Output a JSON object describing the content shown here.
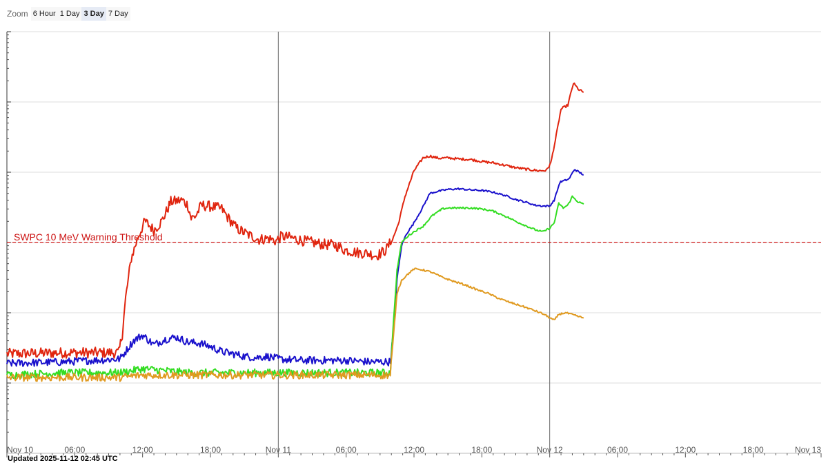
{
  "zoom": {
    "label": "Zoom",
    "buttons": [
      "6 Hour",
      "1 Day",
      "3 Day",
      "7 Day"
    ],
    "selected": "3 Day"
  },
  "updated_text": "Updated 2025-11-12 02:45 UTC",
  "colors": {
    "threshold": "#cc1111",
    "red": "#e0250f",
    "blue": "#1a11cc",
    "green": "#33dd22",
    "orange": "#e09a20",
    "grid": "#dddddd",
    "day_line": "#666666"
  },
  "chart_data": {
    "type": "line",
    "x_unit": "hours since Nov 10 00:00 UTC",
    "xlim": [
      0,
      72
    ],
    "y_scale": "log",
    "ylim": [
      0.01,
      10000
    ],
    "x_ticks": [
      {
        "h": 0,
        "label": "Nov 10"
      },
      {
        "h": 6,
        "label": "06:00"
      },
      {
        "h": 12,
        "label": "12:00"
      },
      {
        "h": 18,
        "label": "18:00"
      },
      {
        "h": 24,
        "label": "Nov 11"
      },
      {
        "h": 30,
        "label": "06:00"
      },
      {
        "h": 36,
        "label": "12:00"
      },
      {
        "h": 42,
        "label": "18:00"
      },
      {
        "h": 48,
        "label": "Nov 12"
      },
      {
        "h": 54,
        "label": "06:00"
      },
      {
        "h": 60,
        "label": "12:00"
      },
      {
        "h": 66,
        "label": "18:00"
      },
      {
        "h": 72,
        "label": "Nov 13"
      }
    ],
    "day_boundaries": [
      24,
      48
    ],
    "threshold": {
      "value": 10,
      "label": "SWPC 10 MeV Warning Threshold"
    },
    "series": [
      {
        "color_key": "red",
        "points": [
          [
            0,
            0.26
          ],
          [
            5,
            0.27
          ],
          [
            9.9,
            0.27
          ],
          [
            10.2,
            0.5
          ],
          [
            10.5,
            1.6
          ],
          [
            11,
            6
          ],
          [
            11.6,
            12
          ],
          [
            12.2,
            20
          ],
          [
            13,
            15
          ],
          [
            13.7,
            20
          ],
          [
            14.5,
            38
          ],
          [
            15.5,
            40
          ],
          [
            16,
            34
          ],
          [
            16.3,
            22
          ],
          [
            16.7,
            24
          ],
          [
            17.2,
            34
          ],
          [
            18.3,
            32
          ],
          [
            19,
            30
          ],
          [
            19.6,
            22
          ],
          [
            20.3,
            16
          ],
          [
            21.3,
            13
          ],
          [
            22.3,
            11
          ],
          [
            23.1,
            11.5
          ],
          [
            23.8,
            10.5
          ],
          [
            24.3,
            12.3
          ],
          [
            25.2,
            11.6
          ],
          [
            26,
            10.8
          ],
          [
            27,
            10
          ],
          [
            28,
            9.4
          ],
          [
            29,
            9.2
          ],
          [
            29.9,
            7.8
          ],
          [
            31,
            7.2
          ],
          [
            32,
            7
          ],
          [
            32.7,
            6.5
          ],
          [
            33.5,
            7.8
          ],
          [
            34.1,
            11
          ],
          [
            34.6,
            18
          ],
          [
            35.2,
            45
          ],
          [
            36,
            105
          ],
          [
            36.8,
            160
          ],
          [
            37.4,
            170
          ],
          [
            38.2,
            158
          ],
          [
            39,
            160
          ],
          [
            40,
            154
          ],
          [
            41,
            152
          ],
          [
            42,
            142
          ],
          [
            43,
            136
          ],
          [
            44,
            126
          ],
          [
            45,
            116
          ],
          [
            46,
            110
          ],
          [
            47,
            105
          ],
          [
            47.7,
            106
          ],
          [
            48.1,
            135
          ],
          [
            48.5,
            285
          ],
          [
            49,
            790
          ],
          [
            49.6,
            900
          ],
          [
            50.1,
            1850
          ],
          [
            50.6,
            1480
          ],
          [
            51,
            1380
          ]
        ]
      },
      {
        "color_key": "blue",
        "points": [
          [
            0,
            0.19
          ],
          [
            5,
            0.2
          ],
          [
            10,
            0.22
          ],
          [
            11.2,
            0.4
          ],
          [
            12,
            0.48
          ],
          [
            13,
            0.35
          ],
          [
            14,
            0.42
          ],
          [
            15,
            0.45
          ],
          [
            16,
            0.38
          ],
          [
            17,
            0.37
          ],
          [
            18,
            0.33
          ],
          [
            19,
            0.28
          ],
          [
            20,
            0.26
          ],
          [
            21,
            0.24
          ],
          [
            22,
            0.23
          ],
          [
            23,
            0.24
          ],
          [
            24,
            0.22
          ],
          [
            26,
            0.21
          ],
          [
            28,
            0.21
          ],
          [
            30,
            0.21
          ],
          [
            32,
            0.2
          ],
          [
            33.9,
            0.2
          ],
          [
            34.2,
            0.6
          ],
          [
            34.5,
            3
          ],
          [
            34.9,
            9
          ],
          [
            35.3,
            13
          ],
          [
            35.9,
            18
          ],
          [
            36.7,
            30
          ],
          [
            37.4,
            50
          ],
          [
            38,
            53
          ],
          [
            39,
            57
          ],
          [
            40,
            58
          ],
          [
            41,
            56
          ],
          [
            42,
            55
          ],
          [
            43,
            52
          ],
          [
            44,
            47
          ],
          [
            45,
            41
          ],
          [
            46,
            37
          ],
          [
            46.7,
            34
          ],
          [
            47.4,
            33
          ],
          [
            48,
            33
          ],
          [
            48.4,
            40
          ],
          [
            48.9,
            72
          ],
          [
            49.2,
            75
          ],
          [
            49.7,
            80
          ],
          [
            50.2,
            110
          ],
          [
            50.6,
            100
          ],
          [
            51,
            92
          ]
        ]
      },
      {
        "color_key": "green",
        "points": [
          [
            0,
            0.13
          ],
          [
            5,
            0.14
          ],
          [
            10,
            0.14
          ],
          [
            12,
            0.16
          ],
          [
            14,
            0.15
          ],
          [
            16,
            0.14
          ],
          [
            18,
            0.14
          ],
          [
            20,
            0.14
          ],
          [
            22,
            0.14
          ],
          [
            24,
            0.14
          ],
          [
            26,
            0.14
          ],
          [
            28,
            0.14
          ],
          [
            30,
            0.14
          ],
          [
            32,
            0.14
          ],
          [
            33.9,
            0.14
          ],
          [
            34.2,
            0.8
          ],
          [
            34.5,
            4
          ],
          [
            34.9,
            10
          ],
          [
            35.5,
            12.5
          ],
          [
            36,
            14.2
          ],
          [
            36.8,
            17
          ],
          [
            37.6,
            24
          ],
          [
            38.5,
            30
          ],
          [
            39,
            31
          ],
          [
            40,
            31
          ],
          [
            41,
            31
          ],
          [
            42,
            30
          ],
          [
            43,
            28
          ],
          [
            44,
            24
          ],
          [
            45,
            20
          ],
          [
            46,
            17
          ],
          [
            46.8,
            15
          ],
          [
            47.4,
            14.2
          ],
          [
            48,
            16
          ],
          [
            48.4,
            19
          ],
          [
            48.8,
            36
          ],
          [
            49.2,
            31
          ],
          [
            49.6,
            34
          ],
          [
            50,
            45
          ],
          [
            50.5,
            38
          ],
          [
            51,
            35
          ]
        ]
      },
      {
        "color_key": "orange",
        "points": [
          [
            0,
            0.12
          ],
          [
            5,
            0.12
          ],
          [
            10,
            0.12
          ],
          [
            12,
            0.13
          ],
          [
            14,
            0.13
          ],
          [
            16,
            0.13
          ],
          [
            18,
            0.13
          ],
          [
            20,
            0.13
          ],
          [
            22,
            0.13
          ],
          [
            24,
            0.13
          ],
          [
            26,
            0.13
          ],
          [
            28,
            0.13
          ],
          [
            30,
            0.13
          ],
          [
            32,
            0.13
          ],
          [
            33.9,
            0.13
          ],
          [
            34.2,
            0.5
          ],
          [
            34.5,
            1.9
          ],
          [
            34.9,
            2.9
          ],
          [
            35.5,
            3.6
          ],
          [
            36,
            4.2
          ],
          [
            36.7,
            4.1
          ],
          [
            37.5,
            3.8
          ],
          [
            38.5,
            3.2
          ],
          [
            39.5,
            2.8
          ],
          [
            40.5,
            2.5
          ],
          [
            41.5,
            2.15
          ],
          [
            42.5,
            1.9
          ],
          [
            43.5,
            1.6
          ],
          [
            44.5,
            1.4
          ],
          [
            45.5,
            1.25
          ],
          [
            46.5,
            1.1
          ],
          [
            47.5,
            0.95
          ],
          [
            48,
            0.85
          ],
          [
            48.4,
            0.78
          ],
          [
            48.8,
            0.95
          ],
          [
            49.4,
            1.0
          ],
          [
            50.1,
            0.93
          ],
          [
            51,
            0.84
          ]
        ]
      }
    ]
  }
}
